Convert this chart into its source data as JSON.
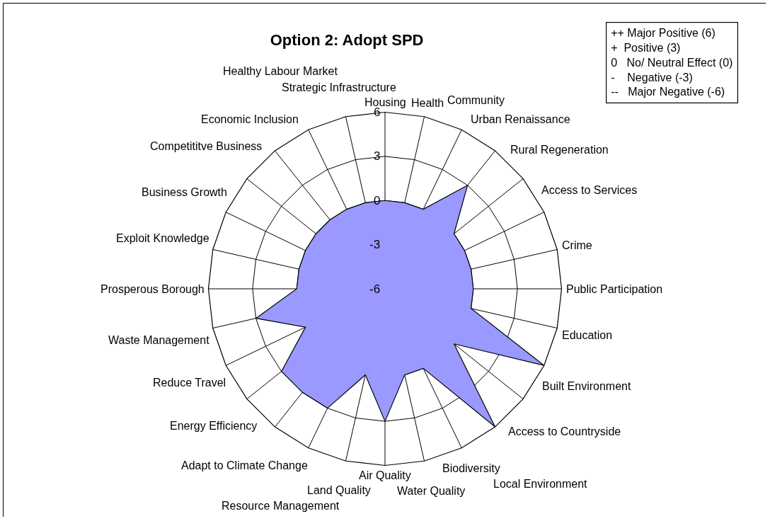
{
  "chart_data": {
    "type": "radar",
    "title": "Option 2: Adopt SPD",
    "categories": [
      "Housing",
      "Health",
      "Community",
      "Urban Renaissance",
      "Rural Regeneration",
      "Access to Services",
      "Crime",
      "Public Participation",
      "Education",
      "Built Environment",
      "Access to Countryside",
      "Local Environment",
      "Biodiversity",
      "Water Quality",
      "Air Quality",
      "Land Quality",
      "Resource Management",
      "Adapt to Climate Change",
      "Energy Efficiency",
      "Reduce Travel",
      "Waste Management",
      "Prosperous Borough",
      "Exploit Knowledge",
      "Business Growth",
      "Competititve Business",
      "Economic Inclusion",
      "Healthy Labour Market",
      "Strategic Infrastructure"
    ],
    "series": [
      {
        "color": "#9999ff",
        "values": [
          0,
          0,
          0,
          3,
          0,
          0,
          0,
          0,
          0,
          6,
          0,
          6,
          0,
          0,
          3,
          0,
          3,
          3,
          3,
          0,
          3,
          0,
          0,
          0,
          0,
          0,
          0,
          0
        ]
      }
    ],
    "ylim": [
      -6,
      6
    ],
    "yticks": [
      -6,
      -3,
      0,
      3,
      6
    ],
    "grid": true,
    "marker": "none",
    "annotations": [
      "++ Major Positive (6)",
      "+  Positive (3)",
      "0   No/ Neutral Effect (0)",
      "-    Negative (-3)",
      "--   Major Negative (-6)"
    ]
  }
}
